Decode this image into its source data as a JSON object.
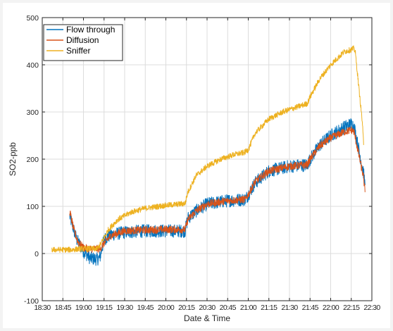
{
  "chart_data": {
    "type": "line",
    "xlabel": "Date & Time",
    "ylabel": "SO2-ppb",
    "ylim": [
      -100,
      500
    ],
    "yticks": [
      -100,
      0,
      100,
      200,
      300,
      400,
      500
    ],
    "xlim": [
      "18:30",
      "22:30"
    ],
    "xticks": [
      "18:30",
      "18:45",
      "19:00",
      "19:15",
      "19:30",
      "19:45",
      "20:00",
      "20:15",
      "20:30",
      "20:45",
      "21:00",
      "21:15",
      "21:30",
      "21:45",
      "22:00",
      "22:15",
      "22:30"
    ],
    "grid": true,
    "legend_position": "top-left",
    "series": [
      {
        "name": "Flow through",
        "color": "#0072BD",
        "noise": 14,
        "points": [
          [
            "18:50",
            80
          ],
          [
            "18:55",
            30
          ],
          [
            "19:00",
            5
          ],
          [
            "19:05",
            -10
          ],
          [
            "19:10",
            -12
          ],
          [
            "19:12",
            -8
          ],
          [
            "19:15",
            30
          ],
          [
            "19:20",
            40
          ],
          [
            "19:30",
            45
          ],
          [
            "19:45",
            48
          ],
          [
            "20:00",
            48
          ],
          [
            "20:14",
            48
          ],
          [
            "20:16",
            75
          ],
          [
            "20:22",
            90
          ],
          [
            "20:30",
            105
          ],
          [
            "20:45",
            112
          ],
          [
            "20:58",
            115
          ],
          [
            "21:00",
            125
          ],
          [
            "21:05",
            150
          ],
          [
            "21:15",
            175
          ],
          [
            "21:30",
            185
          ],
          [
            "21:43",
            188
          ],
          [
            "21:45",
            200
          ],
          [
            "21:52",
            230
          ],
          [
            "22:00",
            250
          ],
          [
            "22:10",
            268
          ],
          [
            "22:15",
            275
          ],
          [
            "22:17",
            270
          ],
          [
            "22:24",
            170
          ],
          [
            "22:25",
            145
          ]
        ]
      },
      {
        "name": "Diffusion",
        "color": "#D95319",
        "noise": 8,
        "points": [
          [
            "18:50",
            90
          ],
          [
            "18:53",
            50
          ],
          [
            "18:56",
            25
          ],
          [
            "19:00",
            12
          ],
          [
            "19:05",
            10
          ],
          [
            "19:12",
            10
          ],
          [
            "19:15",
            22
          ],
          [
            "19:20",
            38
          ],
          [
            "19:30",
            48
          ],
          [
            "19:45",
            50
          ],
          [
            "20:00",
            51
          ],
          [
            "20:14",
            51
          ],
          [
            "20:16",
            72
          ],
          [
            "20:22",
            90
          ],
          [
            "20:30",
            105
          ],
          [
            "20:45",
            112
          ],
          [
            "20:58",
            115
          ],
          [
            "21:00",
            125
          ],
          [
            "21:05",
            152
          ],
          [
            "21:15",
            175
          ],
          [
            "21:30",
            185
          ],
          [
            "21:43",
            188
          ],
          [
            "21:45",
            200
          ],
          [
            "21:52",
            228
          ],
          [
            "22:00",
            245
          ],
          [
            "22:10",
            258
          ],
          [
            "22:15",
            262
          ],
          [
            "22:17",
            258
          ],
          [
            "22:24",
            160
          ],
          [
            "22:25",
            130
          ]
        ]
      },
      {
        "name": "Sniffer",
        "color": "#EDB120",
        "noise": 6,
        "points": [
          [
            "18:37",
            8
          ],
          [
            "18:45",
            8
          ],
          [
            "18:52",
            8
          ],
          [
            "18:57",
            10
          ],
          [
            "19:00",
            10
          ],
          [
            "19:10",
            10
          ],
          [
            "19:13",
            22
          ],
          [
            "19:18",
            50
          ],
          [
            "19:25",
            72
          ],
          [
            "19:35",
            88
          ],
          [
            "19:45",
            96
          ],
          [
            "20:00",
            102
          ],
          [
            "20:14",
            106
          ],
          [
            "20:16",
            130
          ],
          [
            "20:22",
            165
          ],
          [
            "20:30",
            185
          ],
          [
            "20:40",
            200
          ],
          [
            "20:50",
            210
          ],
          [
            "20:57",
            214
          ],
          [
            "21:00",
            220
          ],
          [
            "21:05",
            255
          ],
          [
            "21:15",
            285
          ],
          [
            "21:25",
            300
          ],
          [
            "21:35",
            310
          ],
          [
            "21:43",
            318
          ],
          [
            "21:45",
            332
          ],
          [
            "21:52",
            370
          ],
          [
            "22:00",
            400
          ],
          [
            "22:10",
            428
          ],
          [
            "22:15",
            432
          ],
          [
            "22:17",
            435
          ],
          [
            "22:18",
            425
          ],
          [
            "22:23",
            280
          ],
          [
            "22:24",
            230
          ]
        ]
      }
    ]
  }
}
